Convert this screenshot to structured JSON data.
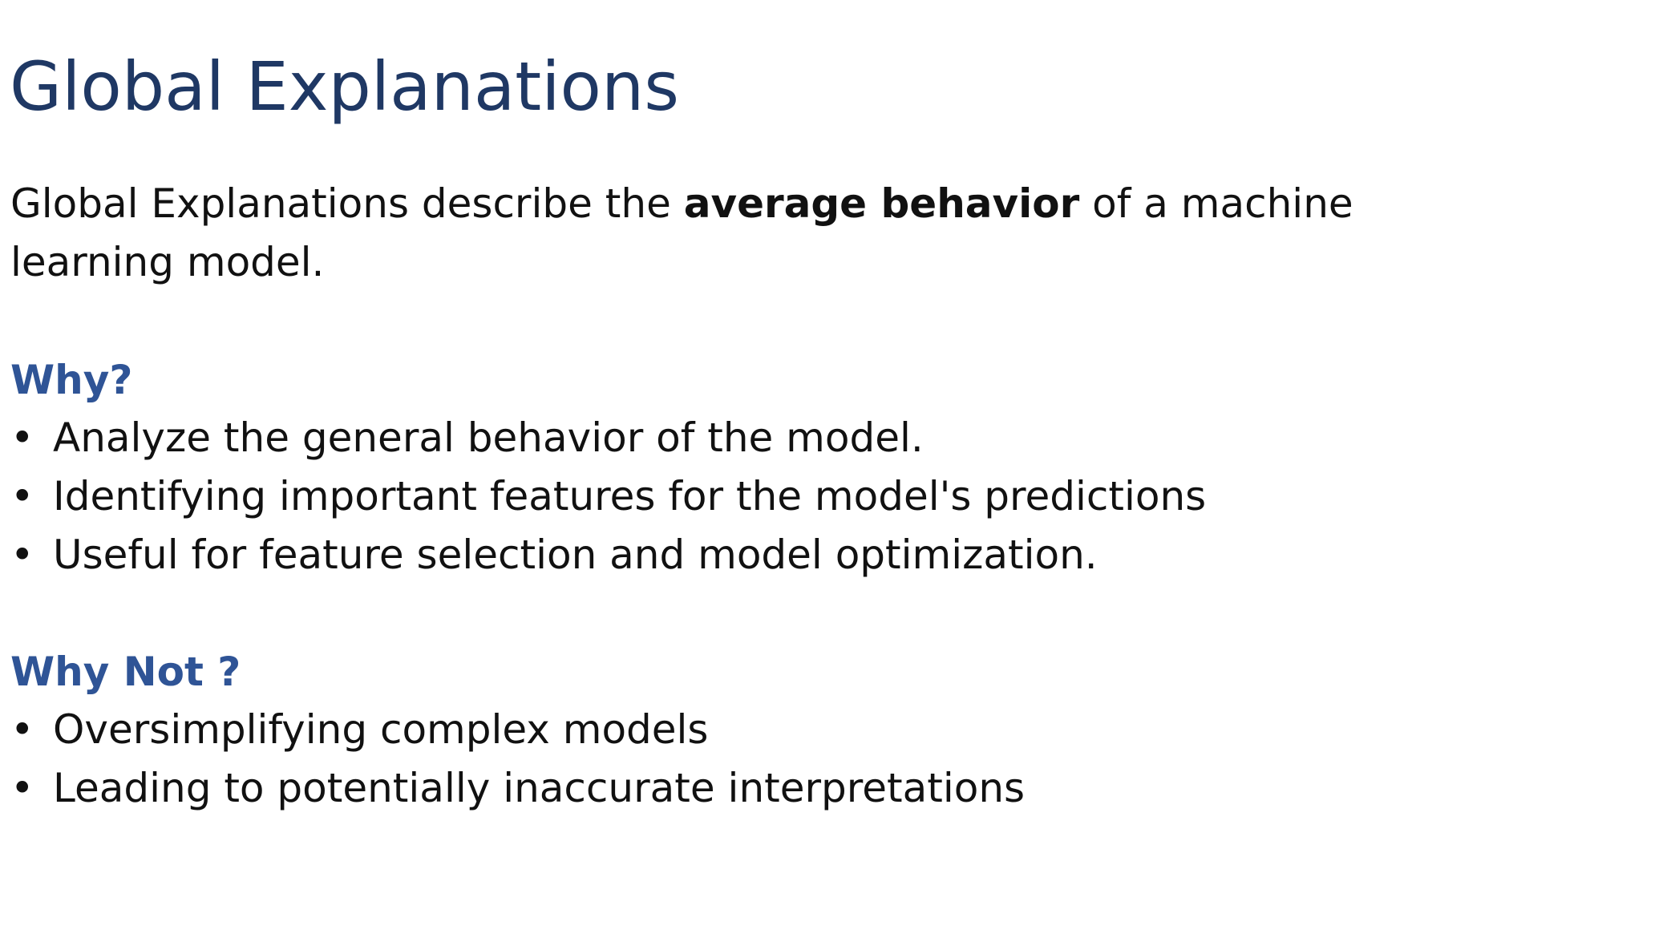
{
  "slide": {
    "title": "Global Explanations",
    "intro": {
      "before": "Global Explanations describe the ",
      "emphasis": "average behavior",
      "after": " of a machine learning model."
    },
    "sections": [
      {
        "heading": "Why?",
        "items": [
          "Analyze the general behavior of the model.",
          "Identifying important features for the model's predictions",
          "Useful for feature selection and model optimization."
        ]
      },
      {
        "heading": "Why Not ?",
        "items": [
          "Oversimplifying complex models",
          "Leading to potentially inaccurate interpretations"
        ]
      }
    ],
    "bullet_glyph": "•",
    "colors": {
      "title": "#1f3864",
      "heading": "#2f5496",
      "body": "#111111",
      "background": "#ffffff"
    }
  }
}
